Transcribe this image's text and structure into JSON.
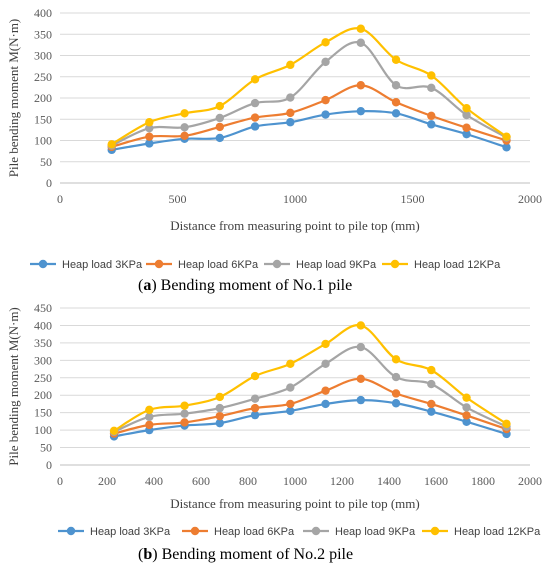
{
  "colors": {
    "series": [
      "#4e93cf",
      "#ed7d31",
      "#a5a5a5",
      "#ffc000"
    ],
    "grid": "#d9d9d9",
    "axis": "#bfbfbf",
    "tick_text": "#595959"
  },
  "chart_data": [
    {
      "type": "line",
      "grid": true,
      "legend_position": "bottom",
      "ylabel": "Pile bending moment  M(N·m)",
      "xlabel": "Distance from measuring point to pile top  (mm)",
      "xlim": [
        0,
        2000
      ],
      "ylim": [
        0,
        400
      ],
      "xticks": [
        "0",
        "500",
        "1000",
        "1500",
        "2000"
      ],
      "yticks": [
        "0",
        "50",
        "100",
        "150",
        "200",
        "250",
        "300",
        "350",
        "400"
      ],
      "caption_label": "a",
      "caption_text": "Bending moment of No.1 pile",
      "x": [
        220,
        380,
        530,
        680,
        830,
        980,
        1130,
        1280,
        1430,
        1580,
        1730,
        1900
      ],
      "series": [
        {
          "name": "Heap load 3KPa",
          "values": [
            78,
            93,
            104,
            106,
            133,
            143,
            161,
            169,
            164,
            138,
            115,
            84
          ]
        },
        {
          "name": "Heap load 6KPa",
          "values": [
            85,
            109,
            111,
            132,
            154,
            165,
            195,
            230,
            190,
            158,
            130,
            100
          ]
        },
        {
          "name": "Heap load 9KPa",
          "values": [
            88,
            129,
            131,
            153,
            188,
            201,
            285,
            330,
            230,
            224,
            160,
            107
          ]
        },
        {
          "name": "Heap load 12KPa",
          "values": [
            91,
            143,
            164,
            181,
            244,
            278,
            331,
            363,
            290,
            253,
            176,
            109
          ]
        }
      ]
    },
    {
      "type": "line",
      "grid": true,
      "legend_position": "bottom",
      "ylabel": "Pile bending moment  M(N·m)",
      "xlabel": "Distance from measuring point to pile top  (mm)",
      "xlim": [
        0,
        2000
      ],
      "ylim": [
        0,
        450
      ],
      "xticks": [
        "0",
        "200",
        "400",
        "600",
        "800",
        "1000",
        "1200",
        "1400",
        "1600",
        "1800",
        "2000"
      ],
      "yticks": [
        "0",
        "50",
        "100",
        "150",
        "200",
        "250",
        "300",
        "350",
        "400",
        "450"
      ],
      "caption_label": "b",
      "caption_text": "Bending moment of No.2 pile",
      "x": [
        230,
        380,
        530,
        680,
        830,
        980,
        1130,
        1280,
        1430,
        1580,
        1730,
        1900
      ],
      "series": [
        {
          "name": "Heap load 3KPa",
          "values": [
            82,
            100,
            113,
            120,
            143,
            155,
            175,
            186,
            177,
            153,
            124,
            89
          ]
        },
        {
          "name": "Heap load 6KPa",
          "values": [
            90,
            115,
            122,
            140,
            163,
            175,
            213,
            247,
            205,
            175,
            142,
            103
          ]
        },
        {
          "name": "Heap load 9KPa",
          "values": [
            95,
            138,
            147,
            163,
            190,
            222,
            290,
            338,
            252,
            232,
            165,
            110
          ]
        },
        {
          "name": "Heap load 12KPa",
          "values": [
            98,
            158,
            170,
            195,
            255,
            290,
            347,
            400,
            303,
            272,
            193,
            118
          ]
        }
      ]
    }
  ]
}
